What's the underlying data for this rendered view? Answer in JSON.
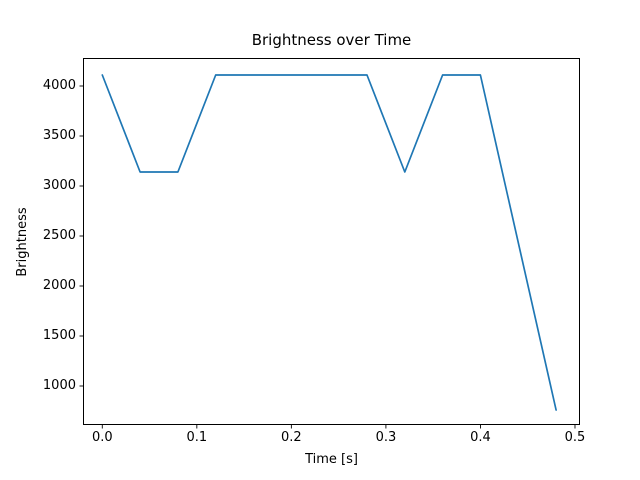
{
  "figure": {
    "title": "Brightness over Time",
    "xlabel": "Time [s]",
    "ylabel": "Brightness"
  },
  "chart_data": {
    "type": "line",
    "title": "Brightness over Time",
    "xlabel": "Time [s]",
    "ylabel": "Brightness",
    "grid": false,
    "legend": null,
    "line_color": "#1f77b4",
    "series": [
      {
        "name": "brightness",
        "color": "#1f77b4",
        "x": [
          0.0,
          0.04,
          0.08,
          0.12,
          0.28,
          0.32,
          0.36,
          0.4,
          0.48
        ],
        "y": [
          4110,
          3140,
          3140,
          4110,
          4110,
          3140,
          4110,
          4110,
          760
        ]
      }
    ],
    "xticks": [
      0.0,
      0.1,
      0.2,
      0.3,
      0.4,
      0.5
    ],
    "xtick_labels": [
      "0.0",
      "0.1",
      "0.2",
      "0.3",
      "0.4",
      "0.5"
    ],
    "yticks": [
      1000,
      1500,
      2000,
      2500,
      3000,
      3500,
      4000
    ],
    "ytick_labels": [
      "1000",
      "1500",
      "2000",
      "2500",
      "3000",
      "3500",
      "4000"
    ],
    "xlim": [
      -0.0204,
      0.5053
    ],
    "ylim": [
      610,
      4280
    ]
  }
}
